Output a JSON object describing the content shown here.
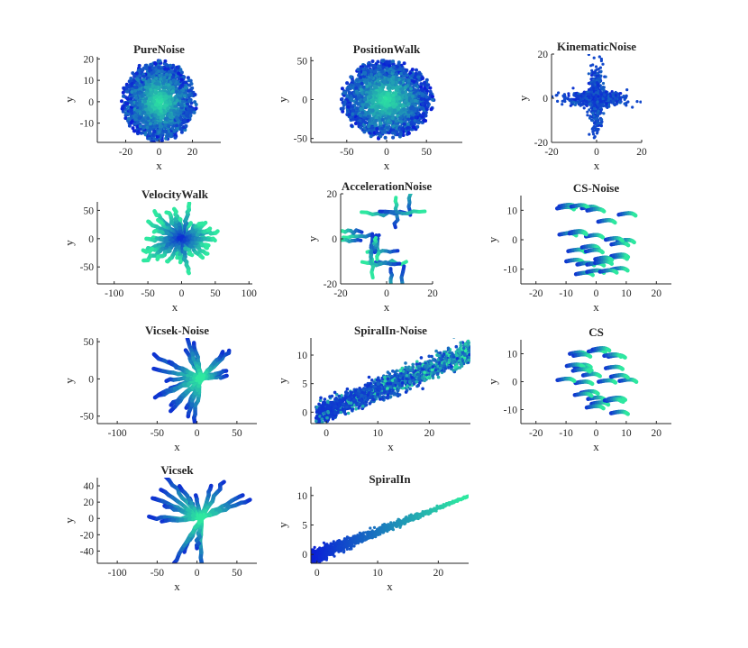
{
  "figure": {
    "description_colors": {
      "start": "#0a1fd6",
      "end": "#2ee8a0"
    }
  },
  "chart_data": [
    {
      "type": "scatter",
      "title": "PureNoise",
      "xlabel": "x",
      "ylabel": "y",
      "xlim": [
        -37,
        37
      ],
      "ylim": [
        -19,
        21
      ],
      "xticks": [
        -20,
        0,
        20
      ],
      "yticks": [
        -10,
        0,
        10,
        20
      ],
      "pattern": "blob",
      "params": {
        "cx": 0,
        "cy": 0,
        "rx": 21,
        "ry": 18,
        "n": 1700
      }
    },
    {
      "type": "scatter",
      "title": "PositionWalk",
      "xlabel": "x",
      "ylabel": "y",
      "xlim": [
        -95,
        95
      ],
      "ylim": [
        -55,
        55
      ],
      "xticks": [
        -50,
        0,
        50
      ],
      "yticks": [
        -50,
        0,
        50
      ],
      "pattern": "blob",
      "params": {
        "cx": 0,
        "cy": 0,
        "rx": 55,
        "ry": 48,
        "n": 1800
      }
    },
    {
      "type": "scatter",
      "title": "KinematicNoise",
      "xlabel": "x",
      "ylabel": "y",
      "xlim": [
        -20,
        20
      ],
      "ylim": [
        -20,
        20
      ],
      "xticks": [
        -20,
        0,
        20
      ],
      "yticks": [
        -20,
        0,
        20
      ],
      "pattern": "cross",
      "params": {
        "n": 900
      }
    },
    {
      "type": "line",
      "title": "VelocityWalk",
      "xlabel": "x",
      "ylabel": "y",
      "xlim": [
        -125,
        105
      ],
      "ylim": [
        -80,
        65
      ],
      "xticks": [
        -100,
        -50,
        0,
        50,
        100
      ],
      "yticks": [
        -50,
        0,
        50
      ],
      "pattern": "star",
      "params": {
        "n": 30,
        "minR": 35,
        "maxR": 75
      }
    },
    {
      "type": "line",
      "title": "AccelerationNoise",
      "xlabel": "x",
      "ylabel": "y",
      "xlim": [
        -20,
        20
      ],
      "ylim": [
        -20,
        20
      ],
      "xticks": [
        -20,
        0,
        20
      ],
      "yticks": [
        -20,
        0,
        20
      ],
      "pattern": "grid",
      "params": {
        "n": 16
      }
    },
    {
      "type": "line",
      "title": "CS-Noise",
      "xlabel": "x",
      "ylabel": "y",
      "xlim": [
        -25,
        25
      ],
      "ylim": [
        -15,
        15
      ],
      "xticks": [
        -20,
        -10,
        0,
        10,
        20
      ],
      "yticks": [
        -10,
        0,
        10
      ],
      "pattern": "hooks",
      "params": {
        "n": 28
      }
    },
    {
      "type": "line",
      "title": "Vicsek-Noise",
      "xlabel": "x",
      "ylabel": "y",
      "xlim": [
        -125,
        75
      ],
      "ylim": [
        -60,
        55
      ],
      "xticks": [
        -100,
        -50,
        0,
        50
      ],
      "yticks": [
        -50,
        0,
        50
      ],
      "pattern": "fan",
      "params": {
        "n": 22
      }
    },
    {
      "type": "scatter",
      "title": "SpiralIn-Noise",
      "xlabel": "x",
      "ylabel": "y",
      "xlim": [
        -3,
        28
      ],
      "ylim": [
        -2,
        13
      ],
      "xticks": [
        0,
        10,
        20
      ],
      "yticks": [
        0,
        5,
        10
      ],
      "pattern": "band",
      "params": {
        "n": 1800,
        "width": 3
      }
    },
    {
      "type": "line",
      "title": "CS",
      "xlabel": "x",
      "ylabel": "y",
      "xlim": [
        -25,
        25
      ],
      "ylim": [
        -15,
        15
      ],
      "xticks": [
        -20,
        -10,
        0,
        10,
        20
      ],
      "yticks": [
        -10,
        0,
        10
      ],
      "pattern": "hooks",
      "params": {
        "n": 26
      }
    },
    {
      "type": "line",
      "title": "Vicsek",
      "xlabel": "x",
      "ylabel": "y",
      "xlim": [
        -125,
        75
      ],
      "ylim": [
        -55,
        50
      ],
      "xticks": [
        -100,
        -50,
        0,
        50
      ],
      "yticks": [
        -40,
        -20,
        0,
        20,
        40
      ],
      "pattern": "fan",
      "params": {
        "n": 18
      }
    },
    {
      "type": "scatter",
      "title": "SpiralIn",
      "xlabel": "x",
      "ylabel": "y",
      "xlim": [
        -1,
        25
      ],
      "ylim": [
        -1.5,
        11.5
      ],
      "xticks": [
        0,
        10,
        20
      ],
      "yticks": [
        0,
        5,
        10
      ],
      "pattern": "wedge",
      "params": {
        "n": 1500
      }
    }
  ]
}
